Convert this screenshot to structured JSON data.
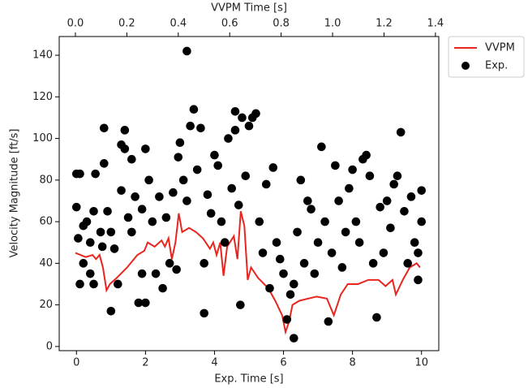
{
  "chart_data": {
    "type": "scatter",
    "xlabel": "Exp. Time [s]",
    "x2label": "VVPM Time [s]",
    "ylabel": "Velocity Magnitude [ft/s]",
    "xlim": [
      -0.5,
      10.5
    ],
    "xticks": [
      0,
      2,
      4,
      6,
      8,
      10
    ],
    "x2lim": [
      -0.063,
      1.413
    ],
    "x2ticks": [
      {
        "value": 0,
        "label": "0.0"
      },
      0.2,
      0.4,
      0.6,
      0.8,
      {
        "value": 1,
        "label": "1.0"
      },
      1.2,
      1.4
    ],
    "ylim": [
      -2,
      149
    ],
    "yticks": [
      0,
      20,
      40,
      60,
      80,
      100,
      120,
      140
    ],
    "legend": "outside-upper-right",
    "series": [
      {
        "name": "VVPM",
        "type": "line",
        "axis": "x2",
        "color": "#e8251f",
        "x": [
          0,
          0.04,
          0.067,
          0.08,
          0.094,
          0.107,
          0.121,
          0.134,
          0.161,
          0.201,
          0.241,
          0.268,
          0.281,
          0.308,
          0.335,
          0.348,
          0.362,
          0.375,
          0.389,
          0.402,
          0.415,
          0.442,
          0.469,
          0.496,
          0.523,
          0.536,
          0.549,
          0.563,
          0.576,
          0.59,
          0.616,
          0.63,
          0.643,
          0.657,
          0.67,
          0.683,
          0.71,
          0.75,
          0.777,
          0.804,
          0.817,
          0.831,
          0.844,
          0.871,
          0.938,
          0.978,
          1.005,
          1.032,
          1.059,
          1.099,
          1.139,
          1.179,
          1.206,
          1.233,
          1.246,
          1.273,
          1.3,
          1.327,
          1.34
        ],
        "values": [
          45,
          43,
          44,
          42,
          44,
          38,
          27,
          30,
          33,
          38,
          44,
          46,
          50,
          48,
          51,
          48,
          52,
          42,
          50,
          64,
          55,
          57,
          55,
          52,
          47,
          50,
          44,
          50,
          34,
          48,
          53,
          42,
          65,
          58,
          32,
          38,
          33,
          28,
          22,
          15,
          7,
          12,
          20,
          22,
          24,
          23,
          15,
          25,
          30,
          30,
          32,
          32,
          29,
          32,
          25,
          32,
          38,
          40,
          38
        ]
      },
      {
        "name": "Exp.",
        "type": "scatter",
        "color": "#000000",
        "x": [
          0,
          0.1,
          0,
          0.05,
          0.1,
          0.2,
          0.3,
          0.2,
          0.4,
          0.4,
          0.5,
          0.5,
          0.55,
          0.7,
          0.75,
          0.8,
          0.8,
          0.9,
          1.0,
          1.0,
          1.1,
          1.2,
          1.3,
          1.3,
          1.4,
          1.4,
          1.5,
          1.6,
          1.6,
          1.7,
          1.8,
          1.9,
          1.9,
          2.0,
          2.0,
          2.1,
          2.2,
          2.3,
          2.4,
          2.5,
          2.6,
          2.7,
          2.8,
          2.9,
          2.95,
          3.0,
          3.1,
          3.2,
          3.2,
          3.3,
          3.4,
          3.5,
          3.6,
          3.7,
          3.7,
          3.8,
          3.9,
          4.0,
          4.1,
          4.2,
          4.3,
          4.4,
          4.5,
          4.6,
          4.6,
          4.7,
          4.75,
          4.8,
          4.9,
          5.0,
          5.1,
          5.2,
          5.3,
          5.4,
          5.5,
          5.6,
          5.7,
          5.8,
          5.9,
          6.0,
          6.1,
          6.2,
          6.3,
          6.3,
          6.4,
          6.5,
          6.6,
          6.7,
          6.8,
          6.9,
          7.0,
          7.1,
          7.2,
          7.3,
          7.4,
          7.5,
          7.6,
          7.7,
          7.8,
          7.9,
          8.0,
          8.1,
          8.2,
          8.3,
          8.4,
          8.5,
          8.6,
          8.7,
          8.8,
          8.9,
          9.0,
          9.1,
          9.2,
          9.3,
          9.4,
          9.5,
          9.6,
          9.7,
          9.8,
          9.9,
          10.0,
          10.0,
          9.9
        ],
        "values": [
          83,
          83,
          67,
          52,
          30,
          58,
          60,
          40,
          35,
          50,
          30,
          65,
          83,
          55,
          48,
          105,
          88,
          65,
          17,
          55,
          47,
          30,
          97,
          75,
          104,
          95,
          62,
          55,
          90,
          72,
          21,
          35,
          66,
          21,
          95,
          80,
          60,
          35,
          72,
          28,
          62,
          40,
          74,
          37,
          91,
          98,
          80,
          142,
          70,
          106,
          114,
          85,
          105,
          40,
          16,
          73,
          64,
          92,
          87,
          60,
          50,
          100,
          76,
          104,
          113,
          68,
          20,
          110,
          82,
          106,
          110,
          112,
          60,
          45,
          78,
          28,
          86,
          50,
          42,
          35,
          13,
          25,
          4,
          30,
          55,
          80,
          40,
          70,
          66,
          35,
          50,
          96,
          60,
          12,
          45,
          87,
          70,
          38,
          55,
          76,
          85,
          60,
          50,
          90,
          92,
          82,
          40,
          14,
          67,
          45,
          70,
          57,
          78,
          82,
          103,
          65,
          40,
          72,
          50,
          32,
          75,
          60,
          45
        ]
      }
    ]
  }
}
